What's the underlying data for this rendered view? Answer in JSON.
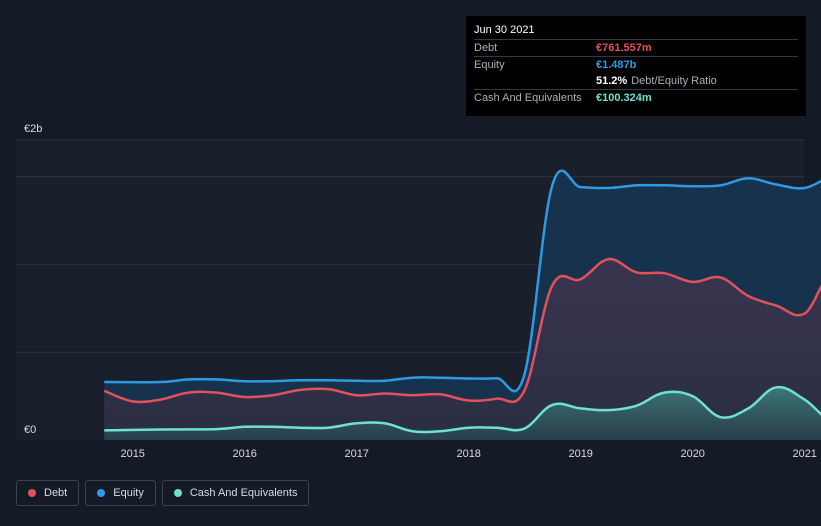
{
  "tooltip": {
    "date": "Jun 30 2021",
    "debt_label": "Debt",
    "debt_value": "€761.557m",
    "equity_label": "Equity",
    "equity_value": "€1.487b",
    "ratio_value": "51.2%",
    "ratio_label": "Debt/Equity Ratio",
    "cash_label": "Cash And Equivalents",
    "cash_value": "€100.324m"
  },
  "legend": [
    {
      "label": "Debt",
      "color": "#e4505a"
    },
    {
      "label": "Equity",
      "color": "#2e9ae6"
    },
    {
      "label": "Cash And Equivalents",
      "color": "#6ee1d0"
    }
  ],
  "colors": {
    "debt": "#e4505a",
    "equity": "#2e9ae6",
    "cash": "#6ee1d0",
    "background": "#151b26"
  },
  "chart_data": {
    "type": "area",
    "ylabel_top": "€2b",
    "ylabel_bottom": "€0",
    "ylim": [
      0,
      1.6
    ],
    "y_unit": "€b",
    "x_ticks": [
      "2015",
      "2016",
      "2017",
      "2018",
      "2019",
      "2020",
      "2021"
    ],
    "grid": true,
    "series": [
      {
        "name": "Equity",
        "points": [
          [
            "2014-09-30",
            0.33
          ],
          [
            "2015-03-31",
            0.33
          ],
          [
            "2015-06-30",
            0.345
          ],
          [
            "2015-09-30",
            0.345
          ],
          [
            "2015-12-31",
            0.335
          ],
          [
            "2016-03-31",
            0.335
          ],
          [
            "2016-06-30",
            0.34
          ],
          [
            "2016-09-30",
            0.34
          ],
          [
            "2016-12-31",
            0.337
          ],
          [
            "2017-03-31",
            0.337
          ],
          [
            "2017-06-30",
            0.355
          ],
          [
            "2017-09-30",
            0.355
          ],
          [
            "2017-12-31",
            0.35
          ],
          [
            "2018-03-31",
            0.352
          ],
          [
            "2018-06-30",
            0.37
          ],
          [
            "2018-09-30",
            1.45
          ],
          [
            "2018-12-31",
            1.44
          ],
          [
            "2019-03-31",
            1.435
          ],
          [
            "2019-06-30",
            1.45
          ],
          [
            "2019-09-30",
            1.45
          ],
          [
            "2019-12-31",
            1.445
          ],
          [
            "2020-03-31",
            1.45
          ],
          [
            "2020-06-30",
            1.49
          ],
          [
            "2020-09-30",
            1.455
          ],
          [
            "2020-12-31",
            1.435
          ],
          [
            "2021-03-31",
            1.5
          ],
          [
            "2021-06-30",
            1.487
          ]
        ]
      },
      {
        "name": "Debt",
        "points": [
          [
            "2014-09-30",
            0.28
          ],
          [
            "2014-12-31",
            0.22
          ],
          [
            "2015-03-31",
            0.23
          ],
          [
            "2015-06-30",
            0.27
          ],
          [
            "2015-09-30",
            0.27
          ],
          [
            "2015-12-31",
            0.245
          ],
          [
            "2016-03-31",
            0.255
          ],
          [
            "2016-06-30",
            0.285
          ],
          [
            "2016-09-30",
            0.29
          ],
          [
            "2016-12-31",
            0.255
          ],
          [
            "2017-03-31",
            0.265
          ],
          [
            "2017-06-30",
            0.255
          ],
          [
            "2017-09-30",
            0.26
          ],
          [
            "2017-12-31",
            0.225
          ],
          [
            "2018-03-31",
            0.235
          ],
          [
            "2018-06-30",
            0.28
          ],
          [
            "2018-09-30",
            0.88
          ],
          [
            "2018-12-31",
            0.915
          ],
          [
            "2019-03-31",
            1.03
          ],
          [
            "2019-06-30",
            0.955
          ],
          [
            "2019-09-30",
            0.95
          ],
          [
            "2019-12-31",
            0.9
          ],
          [
            "2020-03-31",
            0.925
          ],
          [
            "2020-06-30",
            0.82
          ],
          [
            "2020-09-30",
            0.765
          ],
          [
            "2020-12-31",
            0.72
          ],
          [
            "2021-03-31",
            0.95
          ],
          [
            "2021-06-30",
            0.762
          ]
        ]
      },
      {
        "name": "Cash And Equivalents",
        "points": [
          [
            "2014-09-30",
            0.055
          ],
          [
            "2015-03-31",
            0.06
          ],
          [
            "2015-09-30",
            0.062
          ],
          [
            "2015-12-31",
            0.075
          ],
          [
            "2016-03-31",
            0.075
          ],
          [
            "2016-06-30",
            0.07
          ],
          [
            "2016-09-30",
            0.07
          ],
          [
            "2016-12-31",
            0.095
          ],
          [
            "2017-03-31",
            0.095
          ],
          [
            "2017-06-30",
            0.05
          ],
          [
            "2017-09-30",
            0.05
          ],
          [
            "2017-12-31",
            0.07
          ],
          [
            "2018-03-31",
            0.07
          ],
          [
            "2018-06-30",
            0.065
          ],
          [
            "2018-09-30",
            0.2
          ],
          [
            "2018-12-31",
            0.18
          ],
          [
            "2019-03-31",
            0.17
          ],
          [
            "2019-06-30",
            0.195
          ],
          [
            "2019-09-30",
            0.27
          ],
          [
            "2019-12-31",
            0.25
          ],
          [
            "2020-03-31",
            0.13
          ],
          [
            "2020-06-30",
            0.18
          ],
          [
            "2020-09-30",
            0.3
          ],
          [
            "2020-12-31",
            0.23
          ],
          [
            "2021-03-31",
            0.1
          ],
          [
            "2021-06-30",
            0.1
          ]
        ]
      }
    ]
  }
}
